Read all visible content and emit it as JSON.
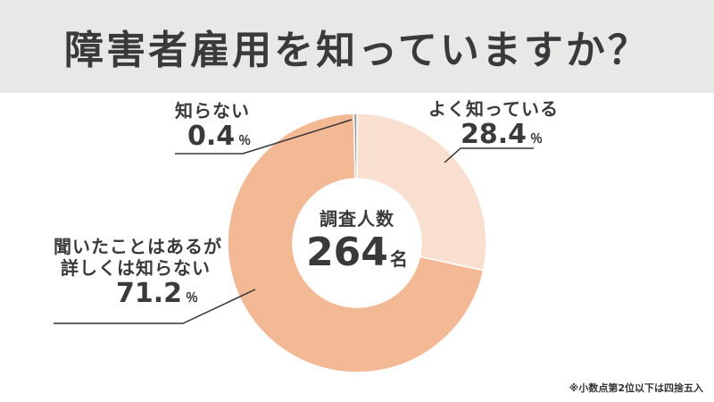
{
  "title": "障害者雇用を知っていますか？",
  "center": {
    "label": "調査人数",
    "value": "264",
    "unit": "名"
  },
  "footnote": "※小数点第2位以下は四捨五入",
  "chart_data": {
    "type": "pie",
    "variant": "donut",
    "unit": "％",
    "slices": [
      {
        "name": "よく知っている",
        "value": 28.4,
        "color": "#f9dfcf"
      },
      {
        "name": "聞いたことはあるが詳しくは知らない",
        "value": 71.2,
        "color": "#f3b995"
      },
      {
        "name": "知らない",
        "value": 0.4,
        "color": "#9a9a9a"
      }
    ]
  },
  "labels": [
    {
      "lines": [
        "よく知っている"
      ],
      "value": "28.4",
      "unit": "％"
    },
    {
      "lines": [
        "聞いたことはあるが",
        "詳しくは知らない"
      ],
      "value": "71.2",
      "unit": "％"
    },
    {
      "lines": [
        "知らない"
      ],
      "value": "0.4",
      "unit": "％"
    }
  ]
}
